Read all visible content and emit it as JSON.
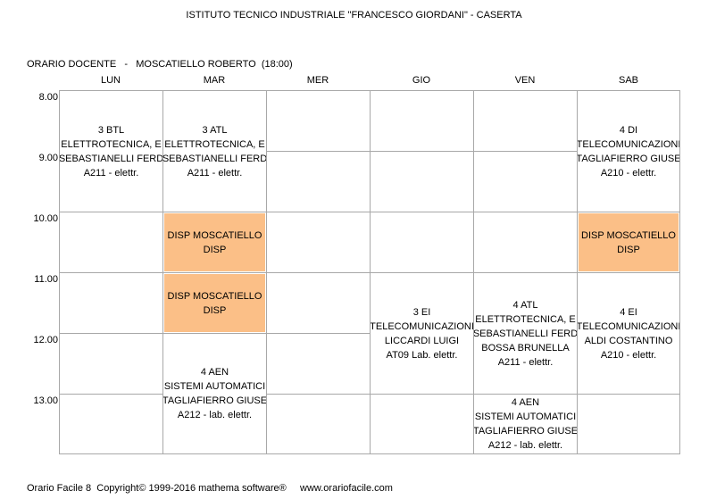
{
  "header": {
    "title": "ISTITUTO TECNICO INDUSTRIALE \"FRANCESCO GIORDANI\" - CASERTA",
    "subtitle": "ORARIO DOCENTE   -   MOSCATIELLO ROBERTO  (18:00)"
  },
  "days": [
    "LUN",
    "MAR",
    "MER",
    "GIO",
    "VEN",
    "SAB"
  ],
  "hours": [
    "8.00",
    "9.00",
    "10.00",
    "11.00",
    "12.00",
    "13.00"
  ],
  "lessons": [
    {
      "id": "lun-1",
      "lines": [
        "3 BTL",
        "ELETTROTECNICA, E",
        "SEBASTIANELLI FERD",
        "A211 - elettr."
      ]
    },
    {
      "id": "mar-1",
      "lines": [
        "3 ATL",
        "ELETTROTECNICA, E",
        "SEBASTIANELLI FERD",
        "A211 - elettr."
      ]
    },
    {
      "id": "sab-1",
      "lines": [
        "4 DI",
        "TELECOMUNICAZIONI",
        "TAGLIAFIERRO GIUSE",
        "A210 - elettr."
      ]
    },
    {
      "id": "mar-3",
      "lines": [
        "DISP MOSCATIELLO",
        "DISP"
      ]
    },
    {
      "id": "sab-3",
      "lines": [
        "DISP MOSCATIELLO",
        "DISP"
      ]
    },
    {
      "id": "mar-4",
      "lines": [
        "DISP MOSCATIELLO",
        "DISP"
      ]
    },
    {
      "id": "gio-4",
      "lines": [
        "3 EI",
        "TELECOMUNICAZIONI",
        "LICCARDI LUIGI",
        "AT09 Lab. elettr."
      ]
    },
    {
      "id": "ven-4",
      "lines": [
        "4 ATL",
        "ELETTROTECNICA, E",
        "SEBASTIANELLI FERD",
        "BOSSA BRUNELLA",
        "A211 - elettr."
      ]
    },
    {
      "id": "sab-4",
      "lines": [
        "4 EI",
        "TELECOMUNICAZIONI",
        "ALDI COSTANTINO",
        "A210 - elettr."
      ]
    },
    {
      "id": "mar-5",
      "lines": [
        "4 AEN",
        "SISTEMI AUTOMATICI",
        "TAGLIAFIERRO GIUSE",
        "A212 - lab. elettr."
      ]
    },
    {
      "id": "ven-6",
      "lines": [
        "4 AEN",
        "SISTEMI AUTOMATICI",
        "TAGLIAFIERRO GIUSE",
        "A212 - lab. elettr."
      ]
    }
  ],
  "footer": "Orario Facile 8  Copyright© 1999-2016 mathema software®     www.orariofacile.com",
  "colors": {
    "disp": "#fbbf87",
    "grid": "#a8a8a8"
  }
}
